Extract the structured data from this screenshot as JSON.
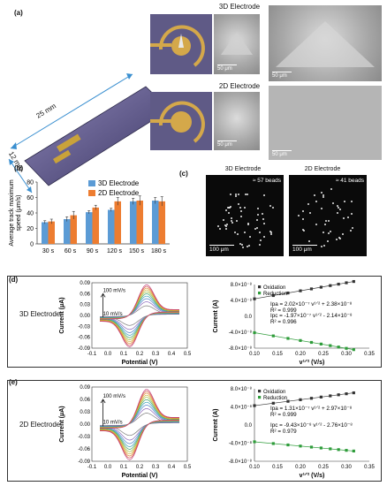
{
  "panel_a": {
    "label": "(a)",
    "dim_length": "25 mm",
    "dim_width": "12 mm",
    "title_3d": "3D Electrode",
    "title_2d": "2D Electrode",
    "scale_50": "50 μm"
  },
  "panel_b": {
    "label": "(b)",
    "legend_3d": "3D Electrode",
    "legend_2d": "2D Electrode",
    "colors": {
      "3d": "#5b9bd5",
      "2d": "#ed7d31"
    }
  },
  "panel_c": {
    "label": "(c)",
    "title_3d": "3D Electrode",
    "title_2d": "2D Electrode",
    "count_3d": "≈ 57 beads",
    "count_2d": "≈ 41 beads",
    "scale_100": "100 μm"
  },
  "panel_d": {
    "label": "(d)",
    "name": "3D Electrode",
    "arrow_top": "100 mV/s",
    "arrow_bottom": "10 mV/s",
    "eq_ox": "Ipa = 2.02×10⁻⁷ v¹ᐟ² + 2.38×10⁻⁸",
    "r2_ox": "R² = 0.999",
    "eq_red": "Ipc = -1.97×10⁻⁷ v¹ᐟ² - 2.14×10⁻⁸",
    "r2_red": "R² = 0.996"
  },
  "panel_e": {
    "label": "(e)",
    "name": "2D Electrode",
    "arrow_top": "100 mV/s",
    "arrow_bottom": "10 mV/s",
    "eq_ox": "Ipa = 1.31×10⁻⁷ v¹ᐟ² + 2.97×10⁻⁸",
    "r2_ox": "R² = 0.999",
    "eq_red": "Ipc = -9.43×10⁻⁸ v¹ᐟ² - 2.76×10⁻⁸",
    "r2_red": "R² = 0.979"
  },
  "chart_data": [
    {
      "type": "bar",
      "id": "speed",
      "categories": [
        "30 s",
        "60 s",
        "90 s",
        "120 s",
        "150 s",
        "180 s"
      ],
      "series": [
        {
          "name": "3D Electrode",
          "values": [
            28,
            32,
            41,
            44,
            55,
            56
          ],
          "errors": [
            2,
            3,
            2,
            2,
            4,
            4
          ]
        },
        {
          "name": "2D Electrode",
          "values": [
            29,
            37,
            47,
            55,
            56,
            55
          ],
          "errors": [
            3,
            5,
            3,
            5,
            6,
            6
          ]
        }
      ],
      "ylabel": "Average track maximum speed (μm/s)",
      "ylim": [
        0,
        80
      ],
      "yticks": [
        0,
        20,
        40,
        60,
        80
      ]
    },
    {
      "type": "line",
      "id": "cv3d",
      "xlabel": "Potential (V)",
      "ylabel": "Current (μA)",
      "xlim": [
        -0.1,
        0.5
      ],
      "ylim": [
        -0.09,
        0.09
      ],
      "xticks": [
        "-0.1",
        "0.0",
        "0.1",
        "0.2",
        "0.3",
        "0.4",
        "0.5"
      ],
      "yticks": [
        "0.09",
        "0.06",
        "0.03",
        "0.00",
        "-0.03",
        "-0.06",
        "-0.09"
      ],
      "scan_rates_mVs": [
        10,
        20,
        30,
        40,
        50,
        60,
        70,
        80,
        90,
        100
      ]
    },
    {
      "type": "scatter",
      "id": "fit3d",
      "xlabel": "v¹ᐟ² (V/s)",
      "ylabel": "Current (A)",
      "xlim": [
        0.1,
        0.35
      ],
      "ylim": [
        -8e-08,
        8e-08
      ],
      "xticks": [
        "0.10",
        "0.15",
        "0.20",
        "0.25",
        "0.30",
        "0.35"
      ],
      "yticks": [
        "8.0×10⁻⁸",
        "4.0×10⁻⁸",
        "0.0",
        "-4.0×10⁻⁸",
        "-8.0×10⁻⁸"
      ],
      "x": [
        0.1,
        0.141,
        0.173,
        0.2,
        0.224,
        0.245,
        0.265,
        0.283,
        0.3,
        0.316
      ],
      "series": [
        {
          "name": "Oxidation",
          "slope": 2.02e-07,
          "intercept": 2.38e-08,
          "color": "#333333"
        },
        {
          "name": "Reduction",
          "slope": -1.97e-07,
          "intercept": -2.14e-08,
          "color": "#2e9c3a"
        }
      ]
    },
    {
      "type": "line",
      "id": "cv2d",
      "xlabel": "Potential (V)",
      "ylabel": "Current (μA)",
      "xlim": [
        -0.1,
        0.5
      ],
      "ylim": [
        -0.09,
        0.09
      ],
      "xticks": [
        "-0.1",
        "0.0",
        "0.1",
        "0.2",
        "0.3",
        "0.4",
        "0.5"
      ],
      "yticks": [
        "0.09",
        "0.06",
        "0.03",
        "0.00",
        "-0.03",
        "-0.06",
        "-0.09"
      ],
      "scan_rates_mVs": [
        10,
        20,
        30,
        40,
        50,
        60,
        70,
        80,
        90,
        100
      ]
    },
    {
      "type": "scatter",
      "id": "fit2d",
      "xlabel": "v¹ᐟ² (V/s)",
      "ylabel": "Current (A)",
      "xlim": [
        0.1,
        0.35
      ],
      "ylim": [
        -8e-08,
        8e-08
      ],
      "xticks": [
        "0.10",
        "0.15",
        "0.20",
        "0.25",
        "0.30",
        "0.35"
      ],
      "yticks": [
        "8.0×10⁻⁸",
        "4.0×10⁻⁸",
        "0.0",
        "-4.0×10⁻⁸",
        "-8.0×10⁻⁸"
      ],
      "x": [
        0.1,
        0.141,
        0.173,
        0.2,
        0.224,
        0.245,
        0.265,
        0.283,
        0.3,
        0.316
      ],
      "series": [
        {
          "name": "Oxidation",
          "slope": 1.31e-07,
          "intercept": 2.97e-08,
          "color": "#333333"
        },
        {
          "name": "Reduction",
          "slope": -9.43e-08,
          "intercept": -2.76e-08,
          "color": "#2e9c3a"
        }
      ]
    }
  ]
}
